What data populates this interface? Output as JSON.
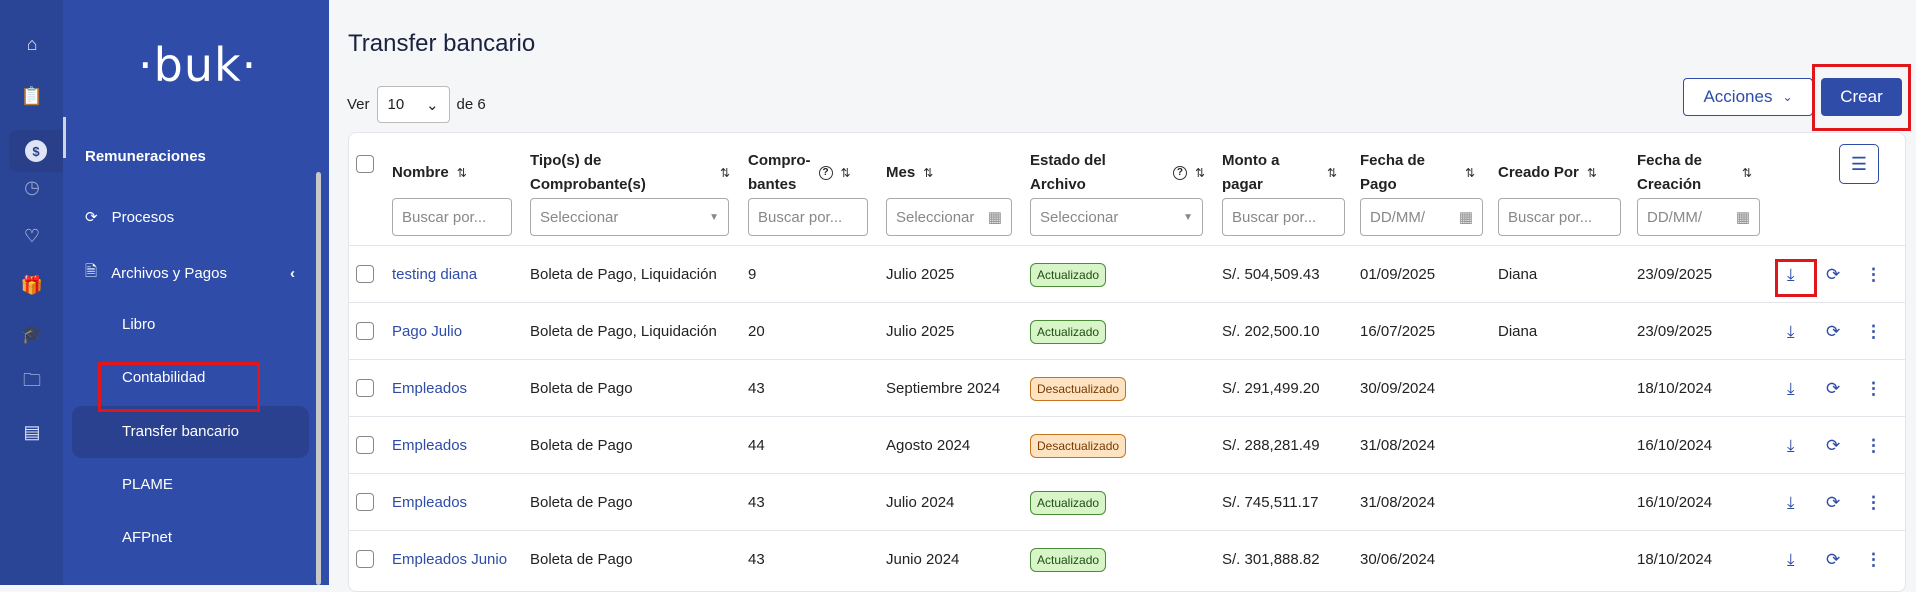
{
  "rail": {
    "icons": [
      "home-icon",
      "clipboard-clock-icon",
      "dollar-icon",
      "clock-icon",
      "hand-heart-icon",
      "gift-icon",
      "graduation-cap-icon",
      "folder-icon",
      "store-icon"
    ],
    "active": 2
  },
  "sidebar": {
    "logo": "·buk·",
    "section": "Remuneraciones",
    "items": [
      {
        "label": "Procesos",
        "icon": "refresh-icon"
      },
      {
        "label": "Archivos y Pagos",
        "icon": "file-dollar-icon"
      }
    ],
    "subitems": [
      "Libro",
      "Contabilidad",
      "Transfer bancario",
      "PLAME",
      "AFPnet"
    ],
    "active_sub": "Transfer bancario"
  },
  "page": {
    "title": "Transfer bancario",
    "ver_label": "Ver",
    "page_size": "10",
    "of_label": "de 6",
    "acciones": "Acciones",
    "crear": "Crear"
  },
  "table": {
    "headers": [
      {
        "l1": "Nombre",
        "l2": ""
      },
      {
        "l1": "Tipo(s) de",
        "l2": "Comprobante(s)"
      },
      {
        "l1": "Compro-",
        "l2": "bantes"
      },
      {
        "l1": "Mes",
        "l2": ""
      },
      {
        "l1": "Estado del",
        "l2": "Archivo"
      },
      {
        "l1": "Monto a",
        "l2": "pagar"
      },
      {
        "l1": "Fecha de",
        "l2": "Pago"
      },
      {
        "l1": "Creado Por",
        "l2": ""
      },
      {
        "l1": "Fecha de",
        "l2": "Creación"
      }
    ],
    "filters": [
      "Buscar por...",
      "Seleccionar",
      "Buscar por...",
      "Seleccionar",
      "Seleccionar",
      "Buscar por...",
      "DD/MM/",
      "Buscar por...",
      "DD/MM/"
    ],
    "rows": [
      {
        "nombre": "testing diana",
        "tipo": "Boleta de Pago, Liquidación",
        "comprobantes": "9",
        "mes": "Julio 2025",
        "estado": "Actualizado",
        "monto": "S/. 504,509.43",
        "fecha_pago": "01/09/2025",
        "creado_por": "Diana",
        "fecha_creacion": "23/09/2025"
      },
      {
        "nombre": "Pago Julio",
        "tipo": "Boleta de Pago, Liquidación",
        "comprobantes": "20",
        "mes": "Julio 2025",
        "estado": "Actualizado",
        "monto": "S/. 202,500.10",
        "fecha_pago": "16/07/2025",
        "creado_por": "Diana",
        "fecha_creacion": "23/09/2025"
      },
      {
        "nombre": "Empleados",
        "tipo": "Boleta de Pago",
        "comprobantes": "43",
        "mes": "Septiembre 2024",
        "estado": "Desactualizado",
        "monto": "S/. 291,499.20",
        "fecha_pago": "30/09/2024",
        "creado_por": "",
        "fecha_creacion": "18/10/2024"
      },
      {
        "nombre": "Empleados",
        "tipo": "Boleta de Pago",
        "comprobantes": "44",
        "mes": "Agosto 2024",
        "estado": "Desactualizado",
        "monto": "S/. 288,281.49",
        "fecha_pago": "31/08/2024",
        "creado_por": "",
        "fecha_creacion": "16/10/2024"
      },
      {
        "nombre": "Empleados",
        "tipo": "Boleta de Pago",
        "comprobantes": "43",
        "mes": "Julio 2024",
        "estado": "Actualizado",
        "monto": "S/. 745,511.17",
        "fecha_pago": "31/08/2024",
        "creado_por": "",
        "fecha_creacion": "16/10/2024"
      },
      {
        "nombre": "Empleados Junio",
        "tipo": "Boleta de Pago",
        "comprobantes": "43",
        "mes": "Junio 2024",
        "estado": "Actualizado",
        "monto": "S/. 301,888.82",
        "fecha_pago": "30/06/2024",
        "creado_por": "",
        "fecha_creacion": "18/10/2024"
      }
    ]
  },
  "colors": {
    "brand": "#2e4ca8",
    "highlight": "#e0161b"
  }
}
